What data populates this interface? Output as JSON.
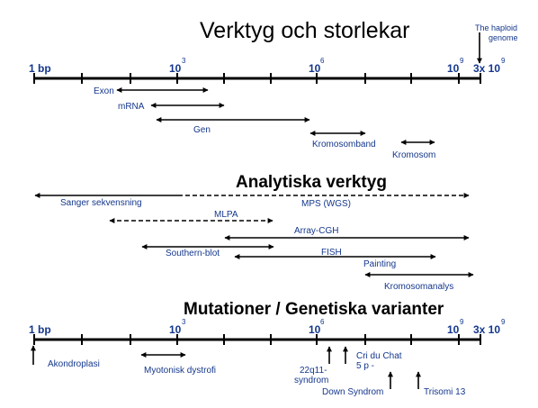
{
  "title": "Verktyg och storlekar",
  "haploid_note": [
    "The haploid",
    "genome"
  ],
  "axis_labels": {
    "one_bp": "1 bp",
    "ten": "10",
    "exp3": "3",
    "exp6": "6",
    "exp9": "9",
    "three_x_ten": "3x 10",
    "exp9b": "9"
  },
  "sizes": {
    "exon": "Exon",
    "mrna": "mRNA",
    "gen": "Gen",
    "kromosomband": "Kromosomband",
    "kromosom": "Kromosom"
  },
  "section2_title": "Analytiska verktyg",
  "tools": {
    "sanger": "Sanger sekvensning",
    "mps": "MPS (WGS)",
    "mlpa": "MLPA",
    "array_cgh": "Array-CGH",
    "southern": "Southern-blot",
    "fish": "FISH",
    "painting": "Painting",
    "kromosomanalys": "Kromosomanalys"
  },
  "section3_title": "Mutationer / Genetiska varianter",
  "variants": {
    "akondroplasi": "Akondroplasi",
    "myotonisk": "Myotonisk dystrofi",
    "del22_line1": "22q11-",
    "del22_line2": "syndrom",
    "cri_line1": "Cri du Chat",
    "cri_line2": "5 p -",
    "down": "Down Syndrom",
    "trisomi13": "Trisomi 13"
  }
}
